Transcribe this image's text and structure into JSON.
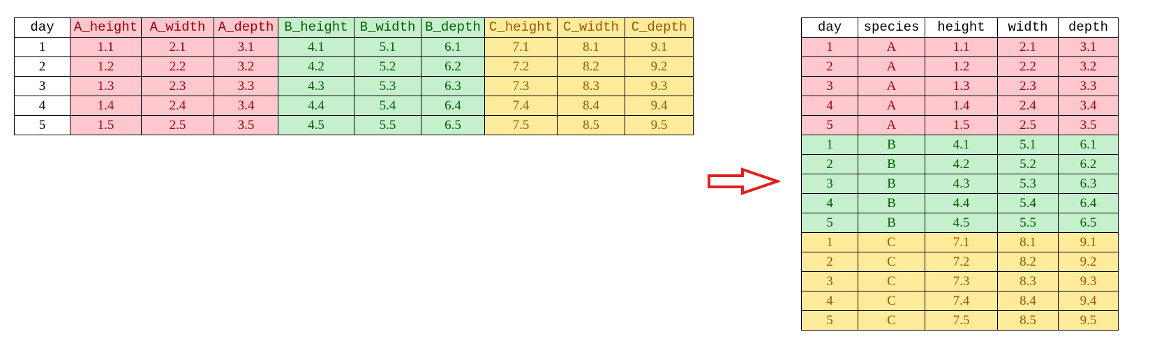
{
  "colors": {
    "A": {
      "fill": "#FFC7CE",
      "text": "#9C0006"
    },
    "B": {
      "fill": "#C6EFCE",
      "text": "#006100"
    },
    "C": {
      "fill": "#FFEB9C",
      "text": "#9C5700"
    },
    "arrow": "#E02020"
  },
  "wide_table": {
    "headers": [
      "day",
      "A_height",
      "A_width",
      "A_depth",
      "B_height",
      "B_width",
      "B_depth",
      "C_height",
      "C_width",
      "C_depth"
    ],
    "header_groups": [
      "",
      "A",
      "A",
      "A",
      "B",
      "B",
      "B",
      "C",
      "C",
      "C"
    ],
    "rows": [
      [
        "1",
        "1.1",
        "2.1",
        "3.1",
        "4.1",
        "5.1",
        "6.1",
        "7.1",
        "8.1",
        "9.1"
      ],
      [
        "2",
        "1.2",
        "2.2",
        "3.2",
        "4.2",
        "5.2",
        "6.2",
        "7.2",
        "8.2",
        "9.2"
      ],
      [
        "3",
        "1.3",
        "2.3",
        "3.3",
        "4.3",
        "5.3",
        "6.3",
        "7.3",
        "8.3",
        "9.3"
      ],
      [
        "4",
        "1.4",
        "2.4",
        "3.4",
        "4.4",
        "5.4",
        "6.4",
        "7.4",
        "8.4",
        "9.4"
      ],
      [
        "5",
        "1.5",
        "2.5",
        "3.5",
        "4.5",
        "5.5",
        "6.5",
        "7.5",
        "8.5",
        "9.5"
      ]
    ]
  },
  "arrow_icon": "right-arrow-outline",
  "long_table": {
    "headers": [
      "day",
      "species",
      "height",
      "width",
      "depth"
    ],
    "rows": [
      [
        "1",
        "A",
        "1.1",
        "2.1",
        "3.1"
      ],
      [
        "2",
        "A",
        "1.2",
        "2.2",
        "3.2"
      ],
      [
        "3",
        "A",
        "1.3",
        "2.3",
        "3.3"
      ],
      [
        "4",
        "A",
        "1.4",
        "2.4",
        "3.4"
      ],
      [
        "5",
        "A",
        "1.5",
        "2.5",
        "3.5"
      ],
      [
        "1",
        "B",
        "4.1",
        "5.1",
        "6.1"
      ],
      [
        "2",
        "B",
        "4.2",
        "5.2",
        "6.2"
      ],
      [
        "3",
        "B",
        "4.3",
        "5.3",
        "6.3"
      ],
      [
        "4",
        "B",
        "4.4",
        "5.4",
        "6.4"
      ],
      [
        "5",
        "B",
        "4.5",
        "5.5",
        "6.5"
      ],
      [
        "1",
        "C",
        "7.1",
        "8.1",
        "9.1"
      ],
      [
        "2",
        "C",
        "7.2",
        "8.2",
        "9.2"
      ],
      [
        "3",
        "C",
        "7.3",
        "8.3",
        "9.3"
      ],
      [
        "4",
        "C",
        "7.4",
        "8.4",
        "9.4"
      ],
      [
        "5",
        "C",
        "7.5",
        "8.5",
        "9.5"
      ]
    ]
  }
}
